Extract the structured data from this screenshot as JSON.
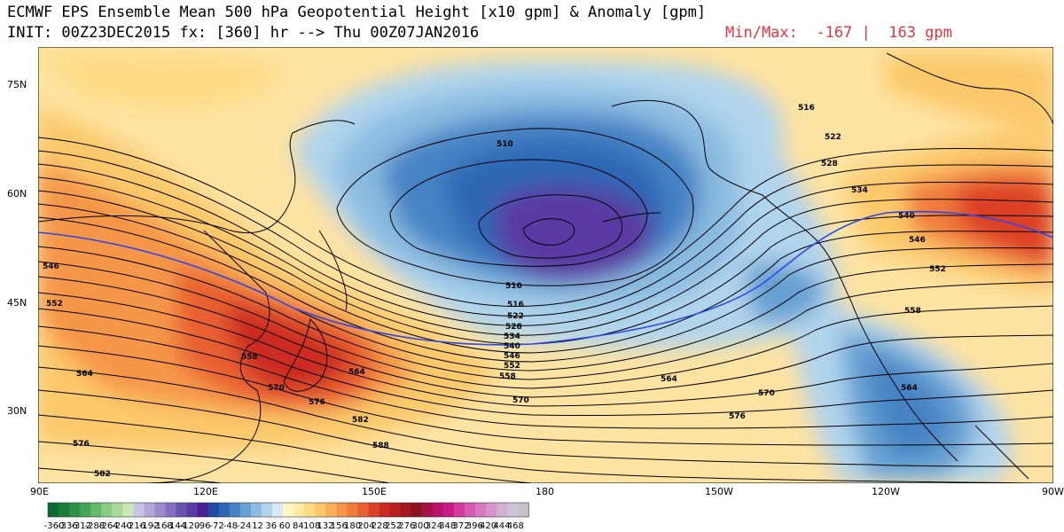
{
  "header": {
    "line1": "ECMWF EPS Ensemble Mean 500 hPa Geopotential Height [x10 gpm] & Anomaly [gpm]",
    "line2": "INIT: 00Z23DEC2015 fx: [360] hr --> Thu 00Z07JAN2016",
    "minmax": "Min/Max:  -167 |  163 gpm"
  },
  "axes": {
    "lat": [
      "75N",
      "60N",
      "45N",
      "30N"
    ],
    "lon": [
      "90E",
      "120E",
      "150E",
      "180",
      "150W",
      "120W",
      "90W"
    ]
  },
  "contour_labels": [
    "510",
    "510",
    "516",
    "516",
    "522",
    "522",
    "528",
    "528",
    "534",
    "534",
    "540",
    "540",
    "546",
    "546",
    "546",
    "552",
    "552",
    "552",
    "558",
    "558",
    "558",
    "564",
    "564",
    "564",
    "564",
    "570",
    "570",
    "570",
    "576",
    "576",
    "576",
    "582",
    "582",
    "588"
  ],
  "colorbar": {
    "labels": [
      "-360",
      "-336",
      "-312",
      "-288",
      "-264",
      "-240",
      "-216",
      "-192",
      "-168",
      "-144",
      "-120",
      "-96",
      "-72",
      "-48",
      "-24",
      "12",
      "36",
      "60",
      "84",
      "108",
      "132",
      "156",
      "180",
      "204",
      "228",
      "252",
      "276",
      "300",
      "324",
      "348",
      "372",
      "396",
      "420",
      "444",
      "468"
    ],
    "colors": [
      "#0b6b33",
      "#1b7d3c",
      "#2e9148",
      "#44a556",
      "#63b96a",
      "#86cc81",
      "#a9dc9a",
      "#c8e8b4",
      "#c9c4e4",
      "#b2a8d8",
      "#9a8acb",
      "#8270bd",
      "#6c52b0",
      "#5a3aa3",
      "#4a1f96",
      "#1f4aa5",
      "#2f67b5",
      "#4783c4",
      "#66a0d2",
      "#8abbe0",
      "#b0d4ec",
      "#d9eaf6",
      "#fff7c0",
      "#feeaa0",
      "#fddc84",
      "#fbc86a",
      "#f8b057",
      "#f59648",
      "#f07c3c",
      "#e85f30",
      "#dd4026",
      "#cc2a21",
      "#b71e20",
      "#a11820",
      "#8a1420",
      "#a31347",
      "#b9126a",
      "#c91b88",
      "#d23a9e",
      "#d55ab0",
      "#d678bf",
      "#d694cb",
      "#d3aed5",
      "#cfc3dc",
      "#c8c0c8"
    ]
  }
}
